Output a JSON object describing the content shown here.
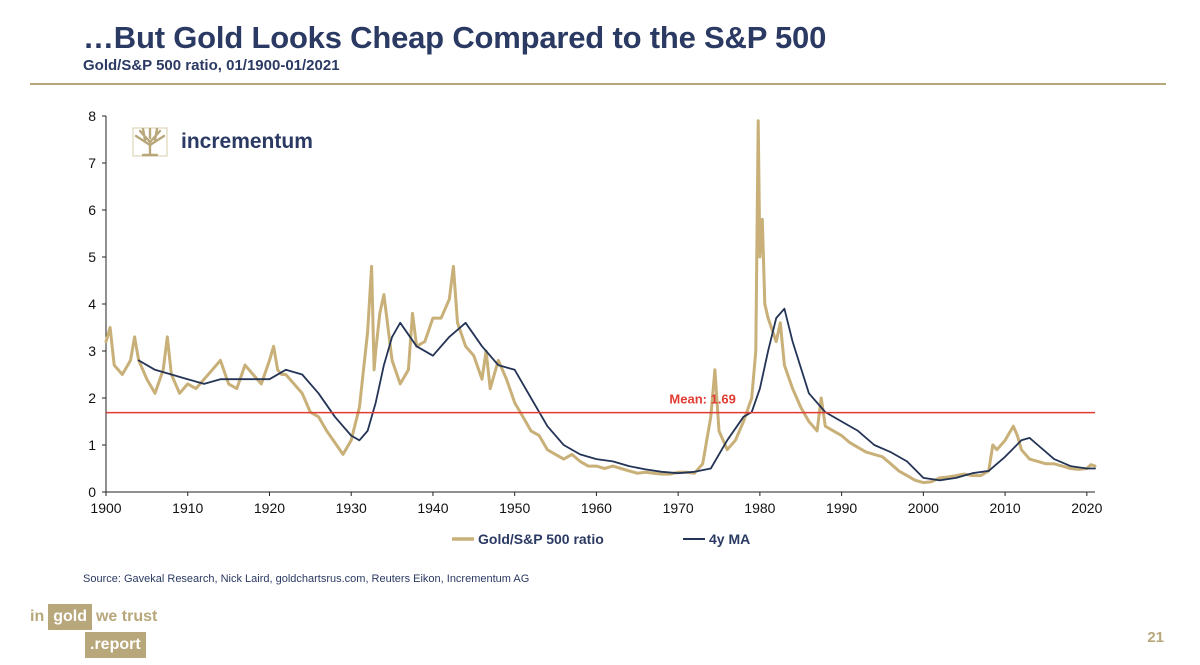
{
  "header": {
    "title": "…But Gold Looks Cheap Compared to the S&P 500",
    "subtitle": "Gold/S&P 500 ratio, 01/1900-01/2021"
  },
  "chart_logo": {
    "text": "incrementum",
    "icon": "tree-icon"
  },
  "colors": {
    "title": "#2b3a63",
    "accent_gold": "#b8a77a",
    "ratio_line": "#c8b078",
    "ma_line": "#243456",
    "mean_line": "#e03c31"
  },
  "chart_data": {
    "type": "line",
    "title": "",
    "xlabel": "",
    "ylabel": "",
    "xlim": [
      1900,
      2021
    ],
    "ylim": [
      0,
      8
    ],
    "xticks": [
      1900,
      1910,
      1920,
      1930,
      1940,
      1950,
      1960,
      1970,
      1980,
      1990,
      2000,
      2010,
      2020
    ],
    "yticks": [
      0,
      1,
      2,
      3,
      4,
      5,
      6,
      7,
      8
    ],
    "grid": false,
    "legend_position": "bottom-center",
    "mean": {
      "value": 1.69,
      "label": "Mean: 1.69"
    },
    "series": [
      {
        "name": "Gold/S&P 500 ratio",
        "x": [
          1900,
          1900.5,
          1901,
          1902,
          1903,
          1903.5,
          1904,
          1905,
          1906,
          1907,
          1907.5,
          1908,
          1909,
          1910,
          1911,
          1912,
          1913,
          1914,
          1915,
          1916,
          1917,
          1918,
          1919,
          1920,
          1920.5,
          1921,
          1921.5,
          1922,
          1923,
          1924,
          1925,
          1926,
          1927,
          1928,
          1929,
          1929.5,
          1930,
          1931,
          1932,
          1932.5,
          1932.8,
          1933,
          1933.5,
          1934,
          1935,
          1936,
          1937,
          1937.5,
          1938,
          1939,
          1940,
          1941,
          1942,
          1942.5,
          1943,
          1944,
          1945,
          1946,
          1946.5,
          1947,
          1948,
          1949,
          1950,
          1951,
          1952,
          1953,
          1954,
          1955,
          1956,
          1957,
          1958,
          1959,
          1960,
          1961,
          1962,
          1963,
          1964,
          1965,
          1966,
          1967,
          1968,
          1969,
          1970,
          1971,
          1972,
          1973,
          1974,
          1974.5,
          1975,
          1976,
          1977,
          1978,
          1979,
          1979.5,
          1979.8,
          1980,
          1980.3,
          1980.6,
          1981,
          1982,
          1982.5,
          1983,
          1984,
          1985,
          1986,
          1987,
          1987.5,
          1988,
          1989,
          1990,
          1991,
          1992,
          1993,
          1994,
          1995,
          1996,
          1997,
          1998,
          1999,
          2000,
          2001,
          2002,
          2003,
          2004,
          2005,
          2006,
          2007,
          2008,
          2008.5,
          2009,
          2010,
          2011,
          2011.5,
          2012,
          2013,
          2014,
          2015,
          2016,
          2017,
          2018,
          2019,
          2020,
          2020.5,
          2021
        ],
        "values": [
          3.2,
          3.5,
          2.7,
          2.5,
          2.8,
          3.3,
          2.8,
          2.4,
          2.1,
          2.6,
          3.3,
          2.5,
          2.1,
          2.3,
          2.2,
          2.4,
          2.6,
          2.8,
          2.3,
          2.2,
          2.7,
          2.5,
          2.3,
          2.8,
          3.1,
          2.6,
          2.5,
          2.5,
          2.3,
          2.1,
          1.7,
          1.6,
          1.3,
          1.05,
          0.8,
          0.95,
          1.1,
          1.8,
          3.4,
          4.8,
          2.6,
          3.0,
          3.8,
          4.2,
          2.8,
          2.3,
          2.6,
          3.8,
          3.1,
          3.2,
          3.7,
          3.7,
          4.1,
          4.8,
          3.6,
          3.1,
          2.9,
          2.4,
          3.0,
          2.2,
          2.8,
          2.4,
          1.9,
          1.6,
          1.3,
          1.2,
          0.9,
          0.8,
          0.7,
          0.8,
          0.65,
          0.55,
          0.55,
          0.5,
          0.55,
          0.5,
          0.45,
          0.4,
          0.42,
          0.4,
          0.38,
          0.38,
          0.42,
          0.42,
          0.4,
          0.6,
          1.6,
          2.6,
          1.3,
          0.9,
          1.1,
          1.5,
          2.0,
          3.0,
          7.9,
          5.0,
          5.8,
          4.0,
          3.7,
          3.2,
          3.6,
          2.7,
          2.2,
          1.8,
          1.5,
          1.3,
          2.0,
          1.4,
          1.3,
          1.2,
          1.05,
          0.95,
          0.85,
          0.8,
          0.75,
          0.6,
          0.45,
          0.35,
          0.25,
          0.2,
          0.22,
          0.3,
          0.32,
          0.35,
          0.38,
          0.35,
          0.35,
          0.45,
          1.0,
          0.9,
          1.1,
          1.4,
          1.2,
          0.9,
          0.7,
          0.65,
          0.6,
          0.6,
          0.55,
          0.5,
          0.48,
          0.5,
          0.58,
          0.55
        ]
      },
      {
        "name": "4y MA",
        "x": [
          1904,
          1906,
          1908,
          1910,
          1912,
          1914,
          1916,
          1918,
          1920,
          1922,
          1924,
          1926,
          1928,
          1930,
          1931,
          1932,
          1933,
          1934,
          1935,
          1936,
          1938,
          1940,
          1942,
          1944,
          1946,
          1948,
          1950,
          1952,
          1954,
          1956,
          1958,
          1960,
          1962,
          1964,
          1966,
          1968,
          1970,
          1972,
          1974,
          1976,
          1978,
          1979,
          1980,
          1981,
          1982,
          1983,
          1984,
          1986,
          1988,
          1990,
          1992,
          1994,
          1996,
          1998,
          2000,
          2002,
          2004,
          2006,
          2008,
          2010,
          2012,
          2013,
          2014,
          2016,
          2018,
          2020,
          2021
        ],
        "values": [
          2.8,
          2.6,
          2.5,
          2.4,
          2.3,
          2.4,
          2.4,
          2.4,
          2.4,
          2.6,
          2.5,
          2.1,
          1.6,
          1.2,
          1.1,
          1.3,
          1.9,
          2.7,
          3.3,
          3.6,
          3.1,
          2.9,
          3.3,
          3.6,
          3.1,
          2.7,
          2.6,
          2.0,
          1.4,
          1.0,
          0.8,
          0.7,
          0.65,
          0.55,
          0.48,
          0.43,
          0.4,
          0.43,
          0.5,
          1.1,
          1.6,
          1.7,
          2.2,
          3.0,
          3.7,
          3.9,
          3.2,
          2.1,
          1.7,
          1.5,
          1.3,
          1.0,
          0.85,
          0.65,
          0.3,
          0.25,
          0.3,
          0.4,
          0.45,
          0.75,
          1.1,
          1.15,
          1.0,
          0.7,
          0.55,
          0.5,
          0.5
        ]
      }
    ]
  },
  "source": "Source: Gavekal Research, Nick Laird, goldchartsrus.com, Reuters Eikon, Incrementum AG",
  "footer": {
    "logo_in": "in",
    "logo_gold": "gold",
    "logo_we_trust": "we trust",
    "logo_report": ".report",
    "page_number": "21"
  }
}
